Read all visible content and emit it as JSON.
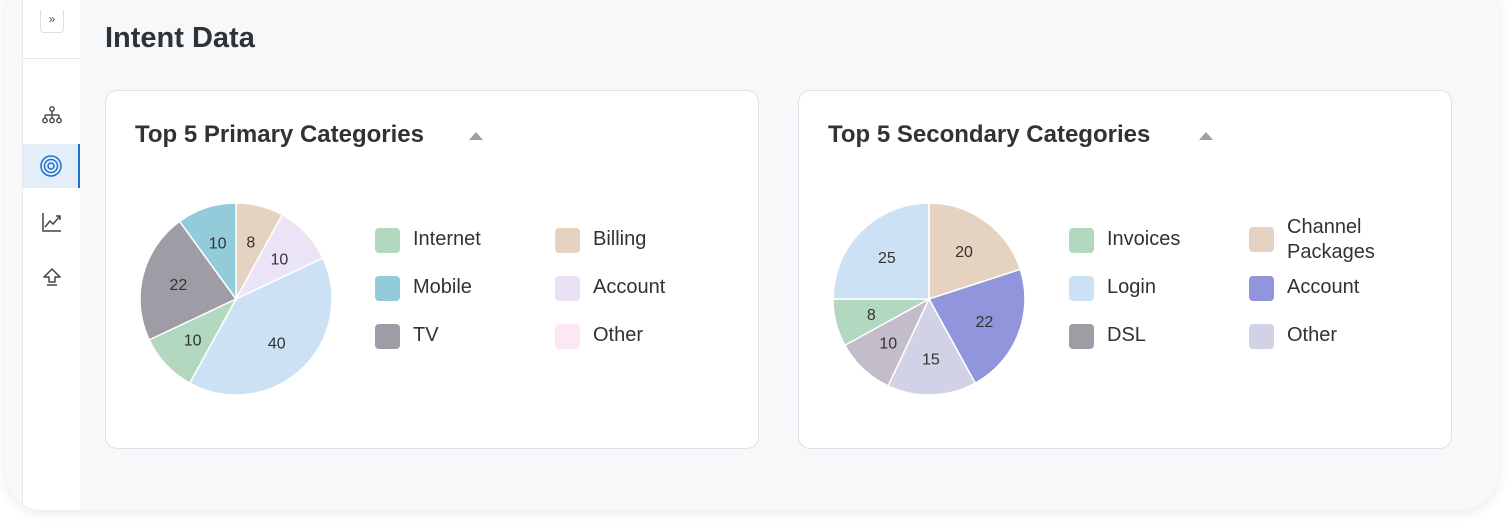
{
  "page": {
    "title": "Intent Data"
  },
  "sidebar": {
    "expand_icon": "double-chevron-right-icon",
    "expand_glyph": "»",
    "items": [
      {
        "name": "hierarchy",
        "icon": "hierarchy-icon",
        "active": false
      },
      {
        "name": "target",
        "icon": "target-icon",
        "active": true
      },
      {
        "name": "trends",
        "icon": "trend-chart-icon",
        "active": false
      },
      {
        "name": "upload",
        "icon": "upload-icon",
        "active": false
      }
    ]
  },
  "cards": [
    {
      "title": "Top 5 Primary Categories",
      "chart_data": {
        "type": "pie",
        "slices": [
          {
            "label": "Billing",
            "value": 8,
            "color": "#e6d2c1"
          },
          {
            "label": "Account",
            "value": 10,
            "color": "#ebe4f6"
          },
          {
            "label": "Other",
            "value": 40,
            "color": "#cce1f4"
          },
          {
            "label": "Internet",
            "value": 10,
            "color": "#b2d9bf"
          },
          {
            "label": "TV",
            "value": 22,
            "color": "#9f9ca6"
          },
          {
            "label": "Mobile",
            "value": 10,
            "color": "#92cbd9"
          }
        ],
        "legend": [
          {
            "label": "Internet",
            "color": "#b2d9bf"
          },
          {
            "label": "Billing",
            "color": "#e6d2c1"
          },
          {
            "label": "Mobile",
            "color": "#92cbd9"
          },
          {
            "label": "Account",
            "color": "#e9e2f5"
          },
          {
            "label": "TV",
            "color": "#9f9ca6"
          },
          {
            "label": "Other",
            "color": "#fce8f3"
          }
        ],
        "legend_placement": "right"
      }
    },
    {
      "title": "Top 5 Secondary Categories",
      "chart_data": {
        "type": "pie",
        "slices": [
          {
            "label": "Channel Packages",
            "value": 20,
            "color": "#e6d2c1"
          },
          {
            "label": "Account",
            "value": 22,
            "color": "#9095dc"
          },
          {
            "label": "Other",
            "value": 15,
            "color": "#d1d2e6"
          },
          {
            "label": "DSL",
            "value": 10,
            "color": "#c2bccb"
          },
          {
            "label": "Invoices",
            "value": 8,
            "color": "#b2d9bf"
          },
          {
            "label": "Login",
            "value": 25,
            "color": "#cce1f4"
          }
        ],
        "legend": [
          {
            "label": "Invoices",
            "color": "#b2d9bf"
          },
          {
            "label": "Channel Packages",
            "color": "#e6d2c1"
          },
          {
            "label": "Login",
            "color": "#cce1f4"
          },
          {
            "label": "Account",
            "color": "#9095dc"
          },
          {
            "label": "DSL",
            "color": "#9f9ca6"
          },
          {
            "label": "Other",
            "color": "#d1d2e6"
          }
        ],
        "legend_placement": "right"
      }
    }
  ]
}
